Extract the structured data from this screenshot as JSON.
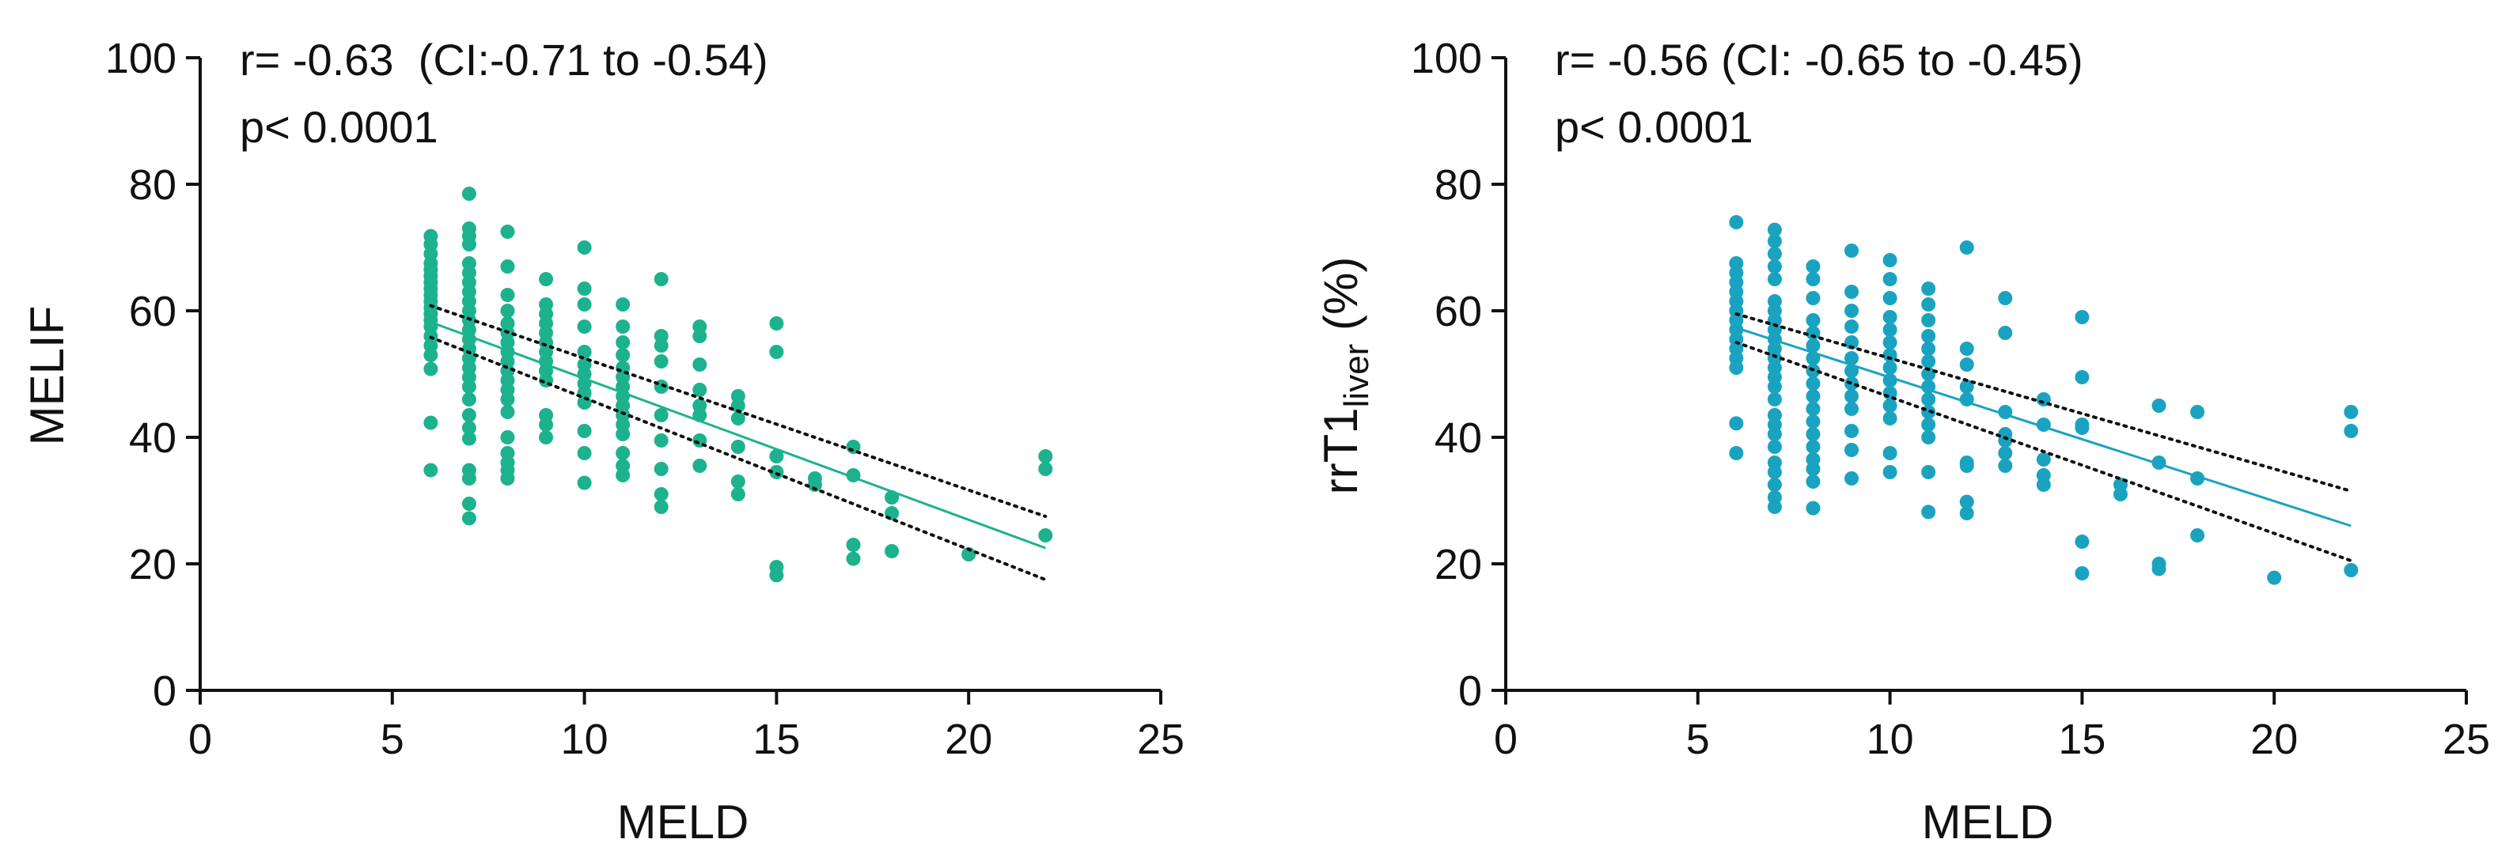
{
  "chart_data": [
    {
      "type": "scatter",
      "id": "left",
      "color": "#1DB28E",
      "xlabel": "MELD",
      "ylabel": "MELIF",
      "xlim": [
        0,
        25
      ],
      "ylim": [
        0,
        100
      ],
      "xticks": [
        0,
        5,
        10,
        15,
        20,
        25
      ],
      "yticks": [
        0,
        20,
        40,
        60,
        80,
        100
      ],
      "annotations": [
        "r= -0.63  (CI:-0.71 to -0.54)",
        "p< 0.0001"
      ],
      "regression": {
        "x": [
          6,
          22
        ],
        "y": [
          58.2,
          22.5
        ]
      },
      "ci_upper": {
        "x": [
          6,
          22
        ],
        "y": [
          60.8,
          27.5
        ]
      },
      "ci_lower": {
        "x": [
          6,
          22
        ],
        "y": [
          55.8,
          17.5
        ]
      },
      "points": [
        [
          6,
          34.8
        ],
        [
          6,
          42.3
        ],
        [
          6,
          50.8
        ],
        [
          6,
          53
        ],
        [
          6,
          54.5
        ],
        [
          6,
          56
        ],
        [
          6,
          57.5
        ],
        [
          6,
          58.5
        ],
        [
          6,
          59.5
        ],
        [
          6,
          60.5
        ],
        [
          6,
          61.5
        ],
        [
          6,
          62.5
        ],
        [
          6,
          63.5
        ],
        [
          6,
          64.5
        ],
        [
          6,
          65.5
        ],
        [
          6,
          66.5
        ],
        [
          6,
          67.5
        ],
        [
          6,
          69
        ],
        [
          6,
          70.5
        ],
        [
          6,
          71.8
        ],
        [
          7,
          27.2
        ],
        [
          7,
          29.5
        ],
        [
          7,
          33.5
        ],
        [
          7,
          34.8
        ],
        [
          7,
          39.8
        ],
        [
          7,
          41.5
        ],
        [
          7,
          43.5
        ],
        [
          7,
          46
        ],
        [
          7,
          48
        ],
        [
          7,
          49.5
        ],
        [
          7,
          51
        ],
        [
          7,
          52.5
        ],
        [
          7,
          54
        ],
        [
          7,
          55.5
        ],
        [
          7,
          57
        ],
        [
          7,
          58.5
        ],
        [
          7,
          60
        ],
        [
          7,
          61.5
        ],
        [
          7,
          63
        ],
        [
          7,
          64.5
        ],
        [
          7,
          66
        ],
        [
          7,
          67.5
        ],
        [
          7,
          70.5
        ],
        [
          7,
          71.8
        ],
        [
          7,
          73
        ],
        [
          7,
          78.5
        ],
        [
          8,
          33.5
        ],
        [
          8,
          34.8
        ],
        [
          8,
          36
        ],
        [
          8,
          37.5
        ],
        [
          8,
          40
        ],
        [
          8,
          44
        ],
        [
          8,
          46
        ],
        [
          8,
          47.5
        ],
        [
          8,
          49
        ],
        [
          8,
          50.5
        ],
        [
          8,
          52
        ],
        [
          8,
          53.5
        ],
        [
          8,
          55
        ],
        [
          8,
          56.5
        ],
        [
          8,
          58
        ],
        [
          8,
          60
        ],
        [
          8,
          62.5
        ],
        [
          8,
          67
        ],
        [
          8,
          72.5
        ],
        [
          9,
          40
        ],
        [
          9,
          42
        ],
        [
          9,
          43.5
        ],
        [
          9,
          49
        ],
        [
          9,
          50.5
        ],
        [
          9,
          52
        ],
        [
          9,
          53.5
        ],
        [
          9,
          55
        ],
        [
          9,
          56.5
        ],
        [
          9,
          58
        ],
        [
          9,
          59.5
        ],
        [
          9,
          61
        ],
        [
          9,
          65
        ],
        [
          10,
          32.8
        ],
        [
          10,
          37.5
        ],
        [
          10,
          41
        ],
        [
          10,
          45.5
        ],
        [
          10,
          47
        ],
        [
          10,
          48.5
        ],
        [
          10,
          50
        ],
        [
          10,
          51.5
        ],
        [
          10,
          53.5
        ],
        [
          10,
          57.5
        ],
        [
          10,
          61
        ],
        [
          10,
          63.5
        ],
        [
          10,
          70
        ],
        [
          11,
          34
        ],
        [
          11,
          35.5
        ],
        [
          11,
          37.5
        ],
        [
          11,
          40.5
        ],
        [
          11,
          42
        ],
        [
          11,
          43.5
        ],
        [
          11,
          45
        ],
        [
          11,
          46.5
        ],
        [
          11,
          48
        ],
        [
          11,
          49.5
        ],
        [
          11,
          51
        ],
        [
          11,
          53
        ],
        [
          11,
          55
        ],
        [
          11,
          57.5
        ],
        [
          11,
          61
        ],
        [
          12,
          29
        ],
        [
          12,
          31
        ],
        [
          12,
          35
        ],
        [
          12,
          39.5
        ],
        [
          12,
          43.5
        ],
        [
          12,
          48
        ],
        [
          12,
          52
        ],
        [
          12,
          54.5
        ],
        [
          12,
          56
        ],
        [
          12,
          65
        ],
        [
          13,
          35.5
        ],
        [
          13,
          39.5
        ],
        [
          13,
          43.5
        ],
        [
          13,
          45
        ],
        [
          13,
          47.5
        ],
        [
          13,
          51.5
        ],
        [
          13,
          56
        ],
        [
          13,
          57.5
        ],
        [
          14,
          31
        ],
        [
          14,
          33
        ],
        [
          14,
          38.5
        ],
        [
          14,
          43
        ],
        [
          14,
          45
        ],
        [
          14,
          46.5
        ],
        [
          15,
          18.2
        ],
        [
          15,
          19.5
        ],
        [
          15,
          34.5
        ],
        [
          15,
          37
        ],
        [
          15,
          53.5
        ],
        [
          15,
          58
        ],
        [
          16,
          32.5
        ],
        [
          16,
          33.5
        ],
        [
          17,
          20.8
        ],
        [
          17,
          23
        ],
        [
          17,
          34
        ],
        [
          17,
          38.5
        ],
        [
          18,
          22
        ],
        [
          18,
          28
        ],
        [
          18,
          30.5
        ],
        [
          20,
          21.5
        ],
        [
          22,
          24.5
        ],
        [
          22,
          35
        ],
        [
          22,
          37
        ]
      ]
    },
    {
      "type": "scatter",
      "id": "right",
      "color": "#1AA3C1",
      "xlabel": "MELD",
      "ylabel_main": "rrT1",
      "ylabel_sub": "liver",
      "ylabel_tail": " (%)",
      "xlim": [
        0,
        25
      ],
      "ylim": [
        0,
        100
      ],
      "xticks": [
        0,
        5,
        10,
        15,
        20,
        25
      ],
      "yticks": [
        0,
        20,
        40,
        60,
        80,
        100
      ],
      "annotations": [
        "r= -0.56 (CI: -0.65 to -0.45)",
        "p< 0.0001"
      ],
      "regression": {
        "x": [
          6,
          22
        ],
        "y": [
          57.3,
          26
        ]
      },
      "ci_upper": {
        "x": [
          6,
          22
        ],
        "y": [
          59.5,
          31.5
        ]
      },
      "ci_lower": {
        "x": [
          6,
          22
        ],
        "y": [
          55,
          20.5
        ]
      },
      "points": [
        [
          6,
          37.5
        ],
        [
          6,
          42.2
        ],
        [
          6,
          51
        ],
        [
          6,
          52.5
        ],
        [
          6,
          54
        ],
        [
          6,
          55.5
        ],
        [
          6,
          57
        ],
        [
          6,
          58.5
        ],
        [
          6,
          60
        ],
        [
          6,
          61.5
        ],
        [
          6,
          63
        ],
        [
          6,
          64.5
        ],
        [
          6,
          66
        ],
        [
          6,
          67.5
        ],
        [
          6,
          74
        ],
        [
          7,
          29
        ],
        [
          7,
          30.5
        ],
        [
          7,
          32.5
        ],
        [
          7,
          34.5
        ],
        [
          7,
          36
        ],
        [
          7,
          38.5
        ],
        [
          7,
          40.5
        ],
        [
          7,
          42
        ],
        [
          7,
          43.5
        ],
        [
          7,
          46
        ],
        [
          7,
          48
        ],
        [
          7,
          49.5
        ],
        [
          7,
          51
        ],
        [
          7,
          52.5
        ],
        [
          7,
          54
        ],
        [
          7,
          55.5
        ],
        [
          7,
          57
        ],
        [
          7,
          58.5
        ],
        [
          7,
          60
        ],
        [
          7,
          61.5
        ],
        [
          7,
          65
        ],
        [
          7,
          67
        ],
        [
          7,
          69
        ],
        [
          7,
          71
        ],
        [
          7,
          72.8
        ],
        [
          8,
          28.8
        ],
        [
          8,
          33
        ],
        [
          8,
          35
        ],
        [
          8,
          36.5
        ],
        [
          8,
          38.5
        ],
        [
          8,
          40.5
        ],
        [
          8,
          42.5
        ],
        [
          8,
          44.5
        ],
        [
          8,
          46.5
        ],
        [
          8,
          48.5
        ],
        [
          8,
          50.5
        ],
        [
          8,
          52.5
        ],
        [
          8,
          54.5
        ],
        [
          8,
          56.5
        ],
        [
          8,
          58.5
        ],
        [
          8,
          62
        ],
        [
          8,
          65
        ],
        [
          8,
          67
        ],
        [
          9,
          33.5
        ],
        [
          9,
          38
        ],
        [
          9,
          41
        ],
        [
          9,
          44.5
        ],
        [
          9,
          46.5
        ],
        [
          9,
          48.5
        ],
        [
          9,
          50.5
        ],
        [
          9,
          52.5
        ],
        [
          9,
          55
        ],
        [
          9,
          57.5
        ],
        [
          9,
          60
        ],
        [
          9,
          63
        ],
        [
          9,
          69.5
        ],
        [
          10,
          34.5
        ],
        [
          10,
          37.5
        ],
        [
          10,
          43
        ],
        [
          10,
          45
        ],
        [
          10,
          47
        ],
        [
          10,
          49
        ],
        [
          10,
          51
        ],
        [
          10,
          53
        ],
        [
          10,
          55
        ],
        [
          10,
          57
        ],
        [
          10,
          59
        ],
        [
          10,
          62
        ],
        [
          10,
          65
        ],
        [
          10,
          68
        ],
        [
          11,
          28.2
        ],
        [
          11,
          34.5
        ],
        [
          11,
          40
        ],
        [
          11,
          42
        ],
        [
          11,
          44
        ],
        [
          11,
          46
        ],
        [
          11,
          48
        ],
        [
          11,
          50
        ],
        [
          11,
          52
        ],
        [
          11,
          54
        ],
        [
          11,
          56
        ],
        [
          11,
          58.5
        ],
        [
          11,
          61
        ],
        [
          11,
          63.5
        ],
        [
          12,
          28
        ],
        [
          12,
          29.8
        ],
        [
          12,
          35.5
        ],
        [
          12,
          36
        ],
        [
          12,
          46
        ],
        [
          12,
          48
        ],
        [
          12,
          51.5
        ],
        [
          12,
          54
        ],
        [
          12,
          70
        ],
        [
          13,
          35.5
        ],
        [
          13,
          37.5
        ],
        [
          13,
          39.5
        ],
        [
          13,
          40.5
        ],
        [
          13,
          44
        ],
        [
          13,
          56.5
        ],
        [
          13,
          62
        ],
        [
          14,
          32.5
        ],
        [
          14,
          34
        ],
        [
          14,
          36.5
        ],
        [
          14,
          42
        ],
        [
          14,
          46
        ],
        [
          15,
          18.5
        ],
        [
          15,
          23.5
        ],
        [
          15,
          41.5
        ],
        [
          15,
          42
        ],
        [
          15,
          49.5
        ],
        [
          15,
          59
        ],
        [
          16,
          31
        ],
        [
          16,
          32.5
        ],
        [
          17,
          19.2
        ],
        [
          17,
          20
        ],
        [
          17,
          36
        ],
        [
          17,
          45
        ],
        [
          18,
          24.5
        ],
        [
          18,
          33.5
        ],
        [
          18,
          44
        ],
        [
          20,
          17.8
        ],
        [
          22,
          19
        ],
        [
          22,
          41
        ],
        [
          22,
          44
        ]
      ]
    }
  ]
}
